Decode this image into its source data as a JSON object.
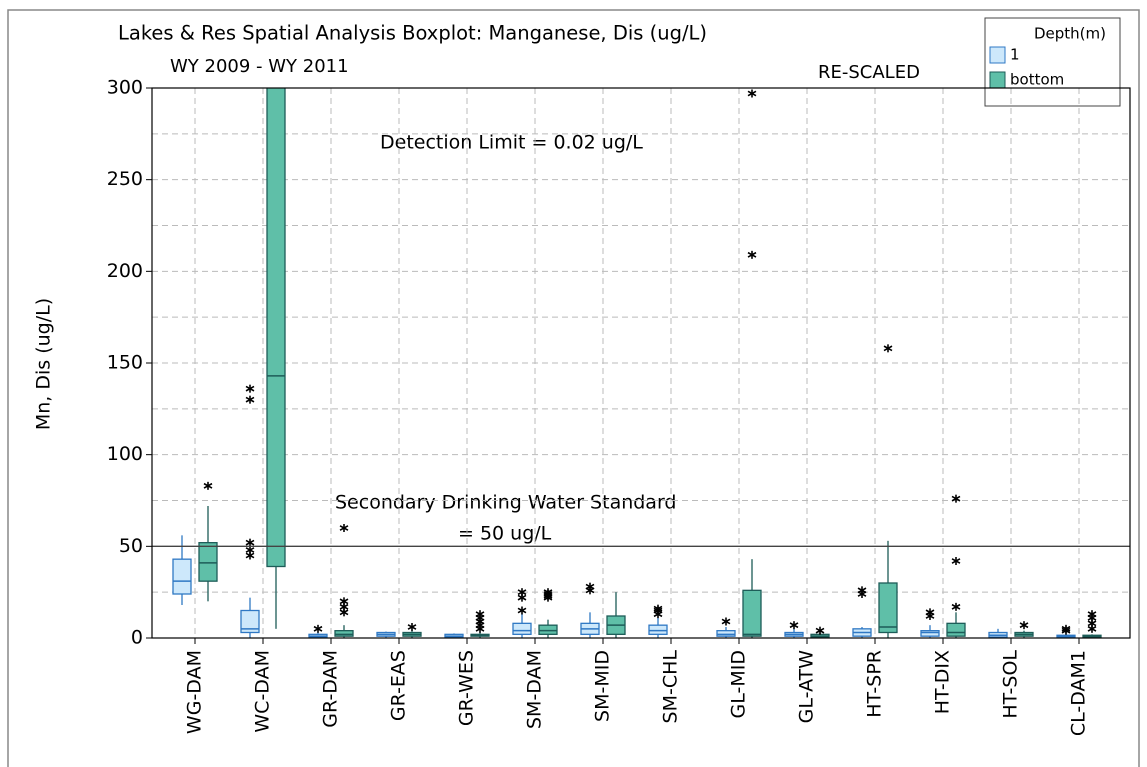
{
  "chart_data": {
    "type": "boxplot",
    "title": "Lakes & Res Spatial Analysis Boxplot: Manganese, Dis (ug/L)",
    "subtitle": "WY 2009 - WY 2011",
    "y_label": "Mn, Dis (ug/L)",
    "annotations": [
      "RE-SCALED",
      "Detection Limit = 0.02 ug/L",
      "Secondary Drinking Water Standard",
      "= 50 ug/L"
    ],
    "reference_line": 50,
    "ylim": [
      0,
      300
    ],
    "yticks": [
      0,
      50,
      100,
      150,
      200,
      250,
      300
    ],
    "ygrid": [
      25,
      50,
      75,
      100,
      125,
      150,
      175,
      200,
      225,
      250,
      275
    ],
    "grid": true,
    "legend_title": "Depth(m)",
    "legend_position": "upper right",
    "categories": [
      "WG-DAM",
      "WC-DAM",
      "GR-DAM",
      "GR-EAS",
      "GR-WES",
      "SM-DAM",
      "SM-MID",
      "SM-CHL",
      "GL-MID",
      "GL-ATW",
      "HT-SPR",
      "HT-DIX",
      "HT-SOL",
      "CL-DAM1"
    ],
    "series": [
      {
        "name": "1",
        "color": "#cde8fb",
        "edge": "#2f78c4",
        "boxes": [
          {
            "min": 18,
            "q1": 24,
            "median": 31,
            "q3": 43,
            "max": 56,
            "outliers": []
          },
          {
            "min": 0,
            "q1": 3,
            "median": 5,
            "q3": 15,
            "max": 22,
            "outliers": [
              45,
              48,
              52,
              130,
              136
            ]
          },
          {
            "min": 0,
            "q1": 0.5,
            "median": 1,
            "q3": 2,
            "max": 3,
            "outliers": [
              5
            ]
          },
          {
            "min": 0,
            "q1": 1,
            "median": 2,
            "q3": 3,
            "max": 3.5,
            "outliers": []
          },
          {
            "min": 0,
            "q1": 0.5,
            "median": 1,
            "q3": 2,
            "max": 2.5,
            "outliers": []
          },
          {
            "min": 0,
            "q1": 2,
            "median": 4,
            "q3": 8,
            "max": 13,
            "outliers": [
              15,
              22,
              25
            ]
          },
          {
            "min": 0,
            "q1": 2,
            "median": 5,
            "q3": 8,
            "max": 14,
            "outliers": [
              26,
              28
            ]
          },
          {
            "min": 0,
            "q1": 2,
            "median": 4,
            "q3": 7,
            "max": 11,
            "outliers": [
              13,
              15,
              16
            ]
          },
          {
            "min": 0,
            "q1": 1,
            "median": 2,
            "q3": 4,
            "max": 6,
            "outliers": [
              9
            ]
          },
          {
            "min": 0,
            "q1": 1,
            "median": 2,
            "q3": 3,
            "max": 5,
            "outliers": [
              7
            ]
          },
          {
            "min": 0,
            "q1": 1,
            "median": 3,
            "q3": 5,
            "max": 6,
            "outliers": [
              24,
              26
            ]
          },
          {
            "min": 0,
            "q1": 1,
            "median": 3,
            "q3": 4,
            "max": 7,
            "outliers": [
              12,
              14
            ]
          },
          {
            "min": 0,
            "q1": 0.5,
            "median": 1.5,
            "q3": 3,
            "max": 5,
            "outliers": []
          },
          {
            "min": 0,
            "q1": 0.5,
            "median": 1,
            "q3": 1.5,
            "max": 2,
            "outliers": [
              4,
              5
            ]
          }
        ]
      },
      {
        "name": "bottom",
        "color": "#5fbfa8",
        "edge": "#1d5c58",
        "boxes": [
          {
            "min": 20,
            "q1": 31,
            "median": 41,
            "q3": 52,
            "max": 72,
            "outliers": [
              83
            ]
          },
          {
            "min": 5,
            "q1": 39,
            "median": 143,
            "q3": 320,
            "max": 380,
            "outliers": []
          },
          {
            "min": 0,
            "q1": 1,
            "median": 2,
            "q3": 4,
            "max": 7,
            "outliers": [
              14,
              17,
              20,
              60
            ]
          },
          {
            "min": 0,
            "q1": 1,
            "median": 2,
            "q3": 3,
            "max": 4,
            "outliers": [
              6
            ]
          },
          {
            "min": 0,
            "q1": 1,
            "median": 1.5,
            "q3": 2,
            "max": 3,
            "outliers": [
              5,
              7,
              9,
              11,
              13
            ]
          },
          {
            "min": 0,
            "q1": 2,
            "median": 4,
            "q3": 7,
            "max": 10,
            "outliers": [
              22,
              23,
              24,
              25
            ]
          },
          {
            "min": 0,
            "q1": 2,
            "median": 7,
            "q3": 12,
            "max": 25,
            "outliers": []
          },
          null,
          {
            "min": 0,
            "q1": 1,
            "median": 2,
            "q3": 26,
            "max": 43,
            "outliers": [
              209,
              297
            ]
          },
          {
            "min": 0,
            "q1": 0.5,
            "median": 1,
            "q3": 2,
            "max": 3,
            "outliers": [
              4
            ]
          },
          {
            "min": 0,
            "q1": 3,
            "median": 6,
            "q3": 30,
            "max": 53,
            "outliers": [
              158
            ]
          },
          {
            "min": 0,
            "q1": 1,
            "median": 3,
            "q3": 8,
            "max": 14,
            "outliers": [
              17,
              42,
              76
            ]
          },
          {
            "min": 0,
            "q1": 1,
            "median": 2,
            "q3": 3,
            "max": 4,
            "outliers": [
              7
            ]
          },
          {
            "min": 0,
            "q1": 0.5,
            "median": 1,
            "q3": 1.5,
            "max": 2,
            "outliers": [
              5,
              8,
              11,
              13
            ]
          }
        ]
      }
    ]
  }
}
